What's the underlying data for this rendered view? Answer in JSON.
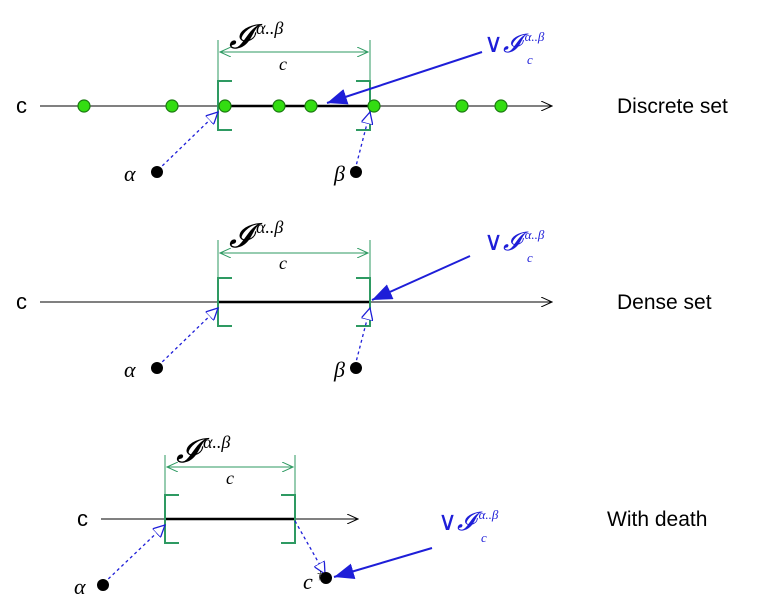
{
  "colors": {
    "axis": "#000000",
    "interval": "#000000",
    "bracket": "#2e9a62",
    "dot_fill": "#33dd11",
    "dot_stroke": "#1a7a10",
    "blue": "#1e1ed8",
    "marker": "#000000"
  },
  "panels": [
    {
      "axis_label": "c",
      "caption": "Discrete set",
      "interval_symbol": "𝓘",
      "subscript": "c",
      "superscript": "α..β",
      "sup_symbol": "∨𝓘",
      "sup_subscript": "c",
      "sup_superscript": "α..β",
      "alpha_label": "α",
      "beta_label": "β"
    },
    {
      "axis_label": "c",
      "caption": "Dense set",
      "interval_symbol": "𝓘",
      "subscript": "c",
      "superscript": "α..β",
      "sup_symbol": "∨𝓘",
      "sup_subscript": "c",
      "sup_superscript": "α..β",
      "alpha_label": "α",
      "beta_label": "β"
    },
    {
      "axis_label": "c",
      "caption": "With death",
      "interval_symbol": "𝓘",
      "subscript": "c",
      "superscript": "α..β",
      "sup_symbol": "∨𝓘",
      "sup_subscript": "c",
      "sup_superscript": "α..β",
      "alpha_label": "α",
      "death_label": "c",
      "death_superscript": "†"
    }
  ]
}
